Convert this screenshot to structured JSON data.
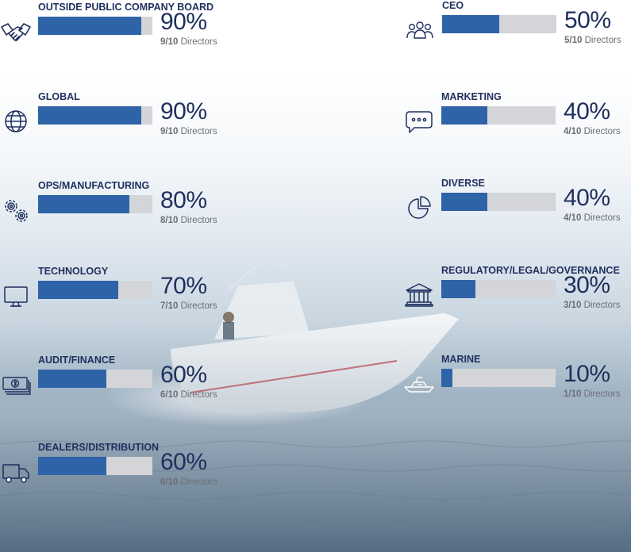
{
  "chart_data": {
    "type": "bar",
    "left_column": [
      {
        "label": "OUTSIDE PUBLIC COMPANY BOARD",
        "value": 90,
        "percent_text": "90%",
        "count": "9/10",
        "unit": "Directors",
        "icon": "handshake-icon"
      },
      {
        "label": "GLOBAL",
        "value": 90,
        "percent_text": "90%",
        "count": "9/10",
        "unit": "Directors",
        "icon": "globe-icon"
      },
      {
        "label": "OPS/MANUFACTURING",
        "value": 80,
        "percent_text": "80%",
        "count": "8/10",
        "unit": "Directors",
        "icon": "gears-icon"
      },
      {
        "label": "TECHNOLOGY",
        "value": 70,
        "percent_text": "70%",
        "count": "7/10",
        "unit": "Directors",
        "icon": "monitor-icon"
      },
      {
        "label": "AUDIT/FINANCE",
        "value": 60,
        "percent_text": "60%",
        "count": "6/10",
        "unit": "Directors",
        "icon": "money-icon"
      },
      {
        "label": "DEALERS/DISTRIBUTION",
        "value": 60,
        "percent_text": "60%",
        "count": "6/10",
        "unit": "Directors",
        "icon": "truck-icon"
      }
    ],
    "right_column": [
      {
        "label": "CEO",
        "value": 50,
        "percent_text": "50%",
        "count": "5/10",
        "unit": "Directors",
        "icon": "people-icon"
      },
      {
        "label": "MARKETING",
        "value": 40,
        "percent_text": "40%",
        "count": "4/10",
        "unit": "Directors",
        "icon": "speech-bubble-icon"
      },
      {
        "label": "DIVERSE",
        "value": 40,
        "percent_text": "40%",
        "count": "4/10",
        "unit": "Directors",
        "icon": "pie-chart-icon"
      },
      {
        "label": "REGULATORY/LEGAL/GOVERNANCE",
        "value": 30,
        "percent_text": "30%",
        "count": "3/10",
        "unit": "Directors",
        "icon": "courthouse-icon"
      },
      {
        "label": "MARINE",
        "value": 10,
        "percent_text": "10%",
        "count": "1/10",
        "unit": "Directors",
        "icon": "boat-icon"
      }
    ],
    "value_range": [
      0,
      100
    ]
  },
  "colors": {
    "fill": "#2f63a8",
    "track": "#d3d5d8",
    "label": "#1f2f5e",
    "subtext": "#6b6f76"
  }
}
